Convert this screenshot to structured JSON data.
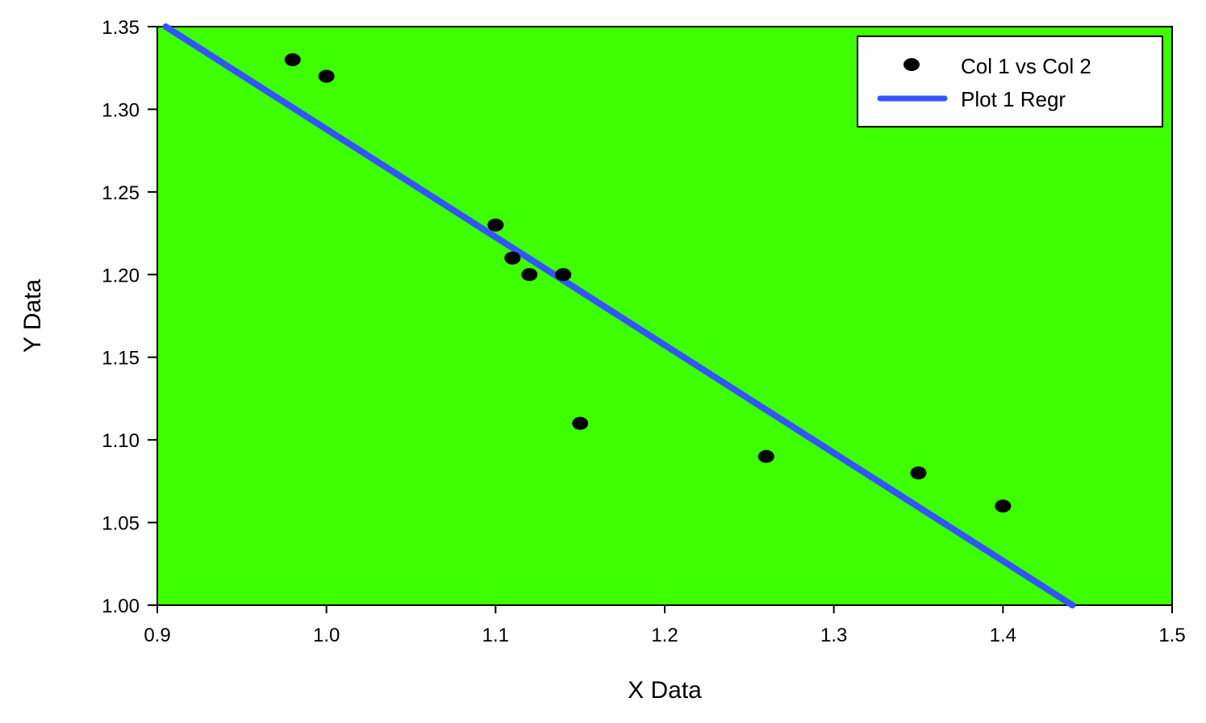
{
  "chart_data": {
    "type": "scatter",
    "xlabel": "X Data",
    "ylabel": "Y Data",
    "xlim": [
      0.9,
      1.5
    ],
    "ylim": [
      1.0,
      1.35
    ],
    "x_ticks": [
      "0.9",
      "1.0",
      "1.1",
      "1.2",
      "1.3",
      "1.4",
      "1.5"
    ],
    "y_ticks": [
      "1.00",
      "1.05",
      "1.10",
      "1.15",
      "1.20",
      "1.25",
      "1.30",
      "1.35"
    ],
    "grid": false,
    "background_color": "#3dff00",
    "legend_position": "top-right",
    "series": [
      {
        "name": "Col 1 vs Col 2",
        "kind": "scatter",
        "color": "#000000",
        "x": [
          0.98,
          1.0,
          1.1,
          1.11,
          1.12,
          1.14,
          1.15,
          1.26,
          1.35,
          1.4
        ],
        "y": [
          1.33,
          1.32,
          1.23,
          1.21,
          1.2,
          1.2,
          1.11,
          1.09,
          1.08,
          1.06
        ]
      },
      {
        "name": "Plot 1 Regr",
        "kind": "line",
        "color": "#3355ff",
        "x": [
          0.905,
          1.441
        ],
        "y": [
          1.35,
          1.0
        ]
      }
    ]
  }
}
